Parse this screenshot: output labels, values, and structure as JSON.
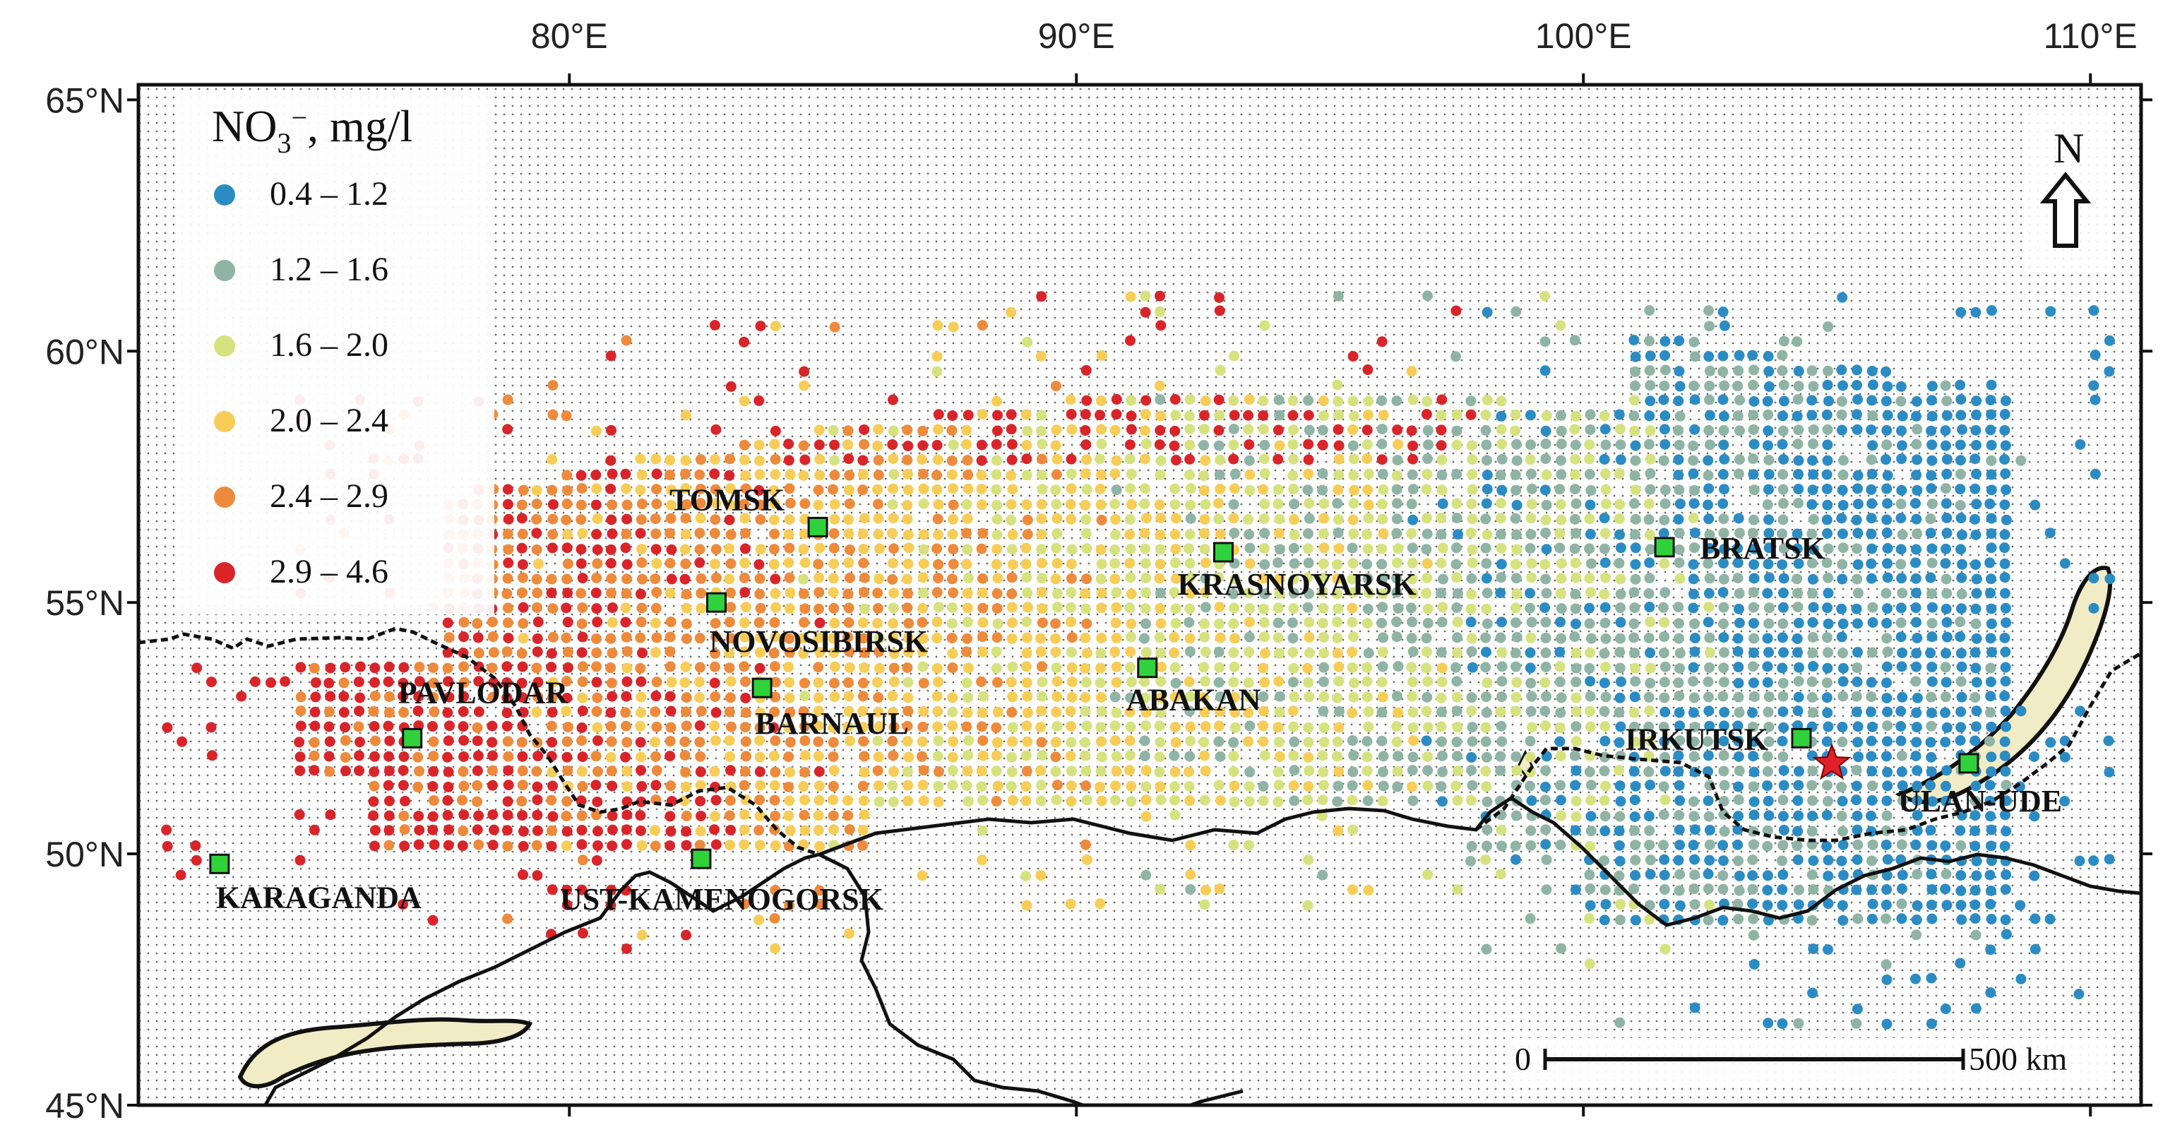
{
  "map": {
    "lon_ticks": [
      "80°E",
      "90°E",
      "100°E",
      "110°E"
    ],
    "lat_ticks": [
      "65°N",
      "60°N",
      "55°N",
      "50°N",
      "45°N"
    ],
    "lon_range": [
      71.5,
      111
    ],
    "lat_range": [
      45,
      65.3
    ]
  },
  "legend": {
    "title_main": "NO",
    "title_sub": "3",
    "title_sup": "−",
    "title_rest": ", mg/l",
    "classes": [
      {
        "label": "0.4 – 1.2",
        "color": "#2b8cc4"
      },
      {
        "label": "1.2 – 1.6",
        "color": "#8fb4a5"
      },
      {
        "label": "1.6 – 2.0",
        "color": "#d6e27e"
      },
      {
        "label": "2.0 – 2.4",
        "color": "#f7cd57"
      },
      {
        "label": "2.4 – 2.9",
        "color": "#ee8a3c"
      },
      {
        "label": "2.9 – 4.6",
        "color": "#d9252a"
      }
    ]
  },
  "cities": [
    {
      "name": "TOMSK",
      "lon": 84.9,
      "lat": 56.5
    },
    {
      "name": "NOVOSIBIRSK",
      "lon": 82.9,
      "lat": 55.0
    },
    {
      "name": "PAVLODAR",
      "lon": 76.9,
      "lat": 52.3
    },
    {
      "name": "BARNAUL",
      "lon": 83.8,
      "lat": 53.3
    },
    {
      "name": "KARAGANDA",
      "lon": 73.1,
      "lat": 49.8
    },
    {
      "name": "UST-KAMENOGORSK",
      "lon": 82.6,
      "lat": 49.9
    },
    {
      "name": "KRASNOYARSK",
      "lon": 92.9,
      "lat": 56.0
    },
    {
      "name": "ABAKAN",
      "lon": 91.4,
      "lat": 53.7
    },
    {
      "name": "BRATSK",
      "lon": 101.6,
      "lat": 56.1
    },
    {
      "name": "IRKUTSK",
      "lon": 104.3,
      "lat": 52.3
    },
    {
      "name": "ULAN-UDE",
      "lon": 107.6,
      "lat": 51.8
    }
  ],
  "station_marker": {
    "lon": 104.9,
    "lat": 51.8
  },
  "scale_bar": {
    "start": "0",
    "end": "500 km"
  },
  "north_arrow": {
    "label": "N"
  }
}
